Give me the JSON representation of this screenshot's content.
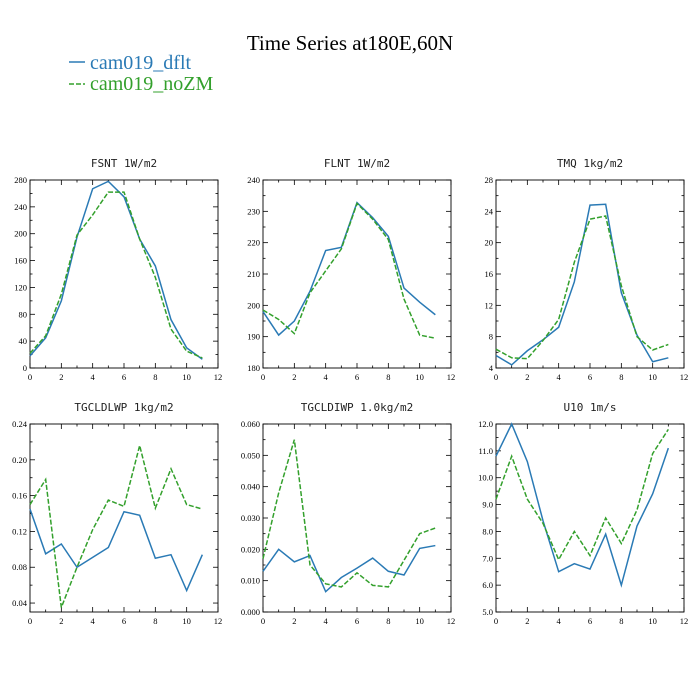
{
  "figure": {
    "title": "Time Series at180E,60N",
    "legend": [
      {
        "name": "cam019_dflt",
        "color": "#2A7AB5",
        "dash": "solid"
      },
      {
        "name": "cam019_noZM",
        "color": "#33A02C",
        "dash": "dashed"
      }
    ]
  },
  "chart_data": [
    {
      "type": "line",
      "title": "FSNT   1W/m2",
      "x": [
        0,
        1,
        2,
        3,
        4,
        5,
        6,
        7,
        8,
        9,
        10,
        11
      ],
      "xlim": [
        0,
        12
      ],
      "xticks": [
        0,
        2,
        4,
        6,
        8,
        10,
        12
      ],
      "ylim": [
        0,
        280
      ],
      "yticks": [
        0,
        40,
        80,
        120,
        160,
        200,
        240,
        280
      ],
      "ytick_labels": [
        "0",
        "40",
        "80",
        "120",
        "160",
        "200",
        "240",
        "280"
      ],
      "series": [
        {
          "name": "cam019_dflt",
          "values": [
            18,
            45,
            100,
            195,
            267,
            278,
            255,
            192,
            152,
            72,
            30,
            13
          ]
        },
        {
          "name": "cam019_noZM",
          "values": [
            22,
            48,
            110,
            198,
            228,
            262,
            262,
            192,
            135,
            58,
            25,
            15
          ]
        }
      ]
    },
    {
      "type": "line",
      "title": "FLNT   1W/m2",
      "x": [
        0,
        1,
        2,
        3,
        4,
        5,
        6,
        7,
        8,
        9,
        10,
        11
      ],
      "xlim": [
        0,
        12
      ],
      "xticks": [
        0,
        2,
        4,
        6,
        8,
        10,
        12
      ],
      "ylim": [
        180,
        240
      ],
      "yticks": [
        180,
        190,
        200,
        210,
        220,
        230,
        240
      ],
      "ytick_labels": [
        "180",
        "190",
        "200",
        "210",
        "220",
        "230",
        "240"
      ],
      "series": [
        {
          "name": "cam019_dflt",
          "values": [
            198,
            190.5,
            195,
            204.5,
            217.5,
            218.5,
            232.8,
            228,
            222,
            205.5,
            201,
            197
          ]
        },
        {
          "name": "cam019_noZM",
          "values": [
            198.5,
            195.5,
            191,
            204,
            211,
            218,
            232.5,
            227.5,
            221,
            202,
            190.5,
            189.5
          ]
        }
      ]
    },
    {
      "type": "line",
      "title": "TMQ   1kg/m2",
      "x": [
        0,
        1,
        2,
        3,
        4,
        5,
        6,
        7,
        8,
        9,
        10,
        11
      ],
      "xlim": [
        0,
        12
      ],
      "xticks": [
        0,
        2,
        4,
        6,
        8,
        10,
        12
      ],
      "ylim": [
        4,
        28
      ],
      "yticks": [
        4,
        8,
        12,
        16,
        20,
        24,
        28
      ],
      "ytick_labels": [
        "4",
        "8",
        "12",
        "16",
        "20",
        "24",
        "28"
      ],
      "series": [
        {
          "name": "cam019_dflt",
          "values": [
            5.6,
            4.4,
            6.2,
            7.6,
            9.2,
            15.0,
            24.8,
            24.9,
            13.6,
            8.2,
            4.8,
            5.3
          ]
        },
        {
          "name": "cam019_noZM",
          "values": [
            6.4,
            5.3,
            5.2,
            7.5,
            10.2,
            17.5,
            23.0,
            23.4,
            14.5,
            8.0,
            6.3,
            7.0
          ]
        }
      ]
    },
    {
      "type": "line",
      "title": "TGCLDLWP   1kg/m2",
      "x": [
        0,
        1,
        2,
        3,
        4,
        5,
        6,
        7,
        8,
        9,
        10,
        11
      ],
      "xlim": [
        0,
        12
      ],
      "xticks": [
        0,
        2,
        4,
        6,
        8,
        10,
        12
      ],
      "ylim": [
        0.03,
        0.24
      ],
      "yticks": [
        0.04,
        0.08,
        0.12,
        0.16,
        0.2,
        0.24
      ],
      "ytick_labels": [
        "0.04",
        "0.08",
        "0.12",
        "0.16",
        "0.20",
        "0.24"
      ],
      "series": [
        {
          "name": "cam019_dflt",
          "values": [
            0.145,
            0.095,
            0.106,
            0.08,
            0.091,
            0.102,
            0.142,
            0.138,
            0.09,
            0.094,
            0.054,
            0.094
          ]
        },
        {
          "name": "cam019_noZM",
          "values": [
            0.15,
            0.178,
            0.035,
            0.08,
            0.122,
            0.155,
            0.148,
            0.216,
            0.146,
            0.19,
            0.15,
            0.145
          ]
        }
      ]
    },
    {
      "type": "line",
      "title": "TGCLDIWP   1.0kg/m2",
      "x": [
        0,
        1,
        2,
        3,
        4,
        5,
        6,
        7,
        8,
        9,
        10,
        11
      ],
      "xlim": [
        0,
        12
      ],
      "xticks": [
        0,
        2,
        4,
        6,
        8,
        10,
        12
      ],
      "ylim": [
        0.0,
        0.06
      ],
      "yticks": [
        0.0,
        0.01,
        0.02,
        0.03,
        0.04,
        0.05,
        0.06
      ],
      "ytick_labels": [
        "0.000",
        "0.010",
        "0.020",
        "0.030",
        "0.040",
        "0.050",
        "0.060"
      ],
      "series": [
        {
          "name": "cam019_dflt",
          "values": [
            0.013,
            0.02,
            0.016,
            0.018,
            0.0065,
            0.011,
            0.014,
            0.0172,
            0.013,
            0.0118,
            0.0203,
            0.0212
          ]
        },
        {
          "name": "cam019_noZM",
          "values": [
            0.017,
            0.038,
            0.055,
            0.015,
            0.009,
            0.008,
            0.0125,
            0.0085,
            0.008,
            0.0165,
            0.025,
            0.0268
          ]
        }
      ]
    },
    {
      "type": "line",
      "title": "U10   1m/s",
      "x": [
        0,
        1,
        2,
        3,
        4,
        5,
        6,
        7,
        8,
        9,
        10,
        11
      ],
      "xlim": [
        0,
        12
      ],
      "xticks": [
        0,
        2,
        4,
        6,
        8,
        10,
        12
      ],
      "ylim": [
        5.0,
        12.0
      ],
      "yticks": [
        5,
        6,
        7,
        8,
        9,
        10,
        11,
        12
      ],
      "ytick_labels": [
        "5.0",
        "6.0",
        "7.0",
        "8.0",
        "9.0",
        "10.0",
        "11.0",
        "12.0"
      ],
      "series": [
        {
          "name": "cam019_dflt",
          "values": [
            10.8,
            12.0,
            10.6,
            8.4,
            6.5,
            6.8,
            6.6,
            7.9,
            6.0,
            8.2,
            9.4,
            11.1
          ]
        },
        {
          "name": "cam019_noZM",
          "values": [
            9.2,
            10.8,
            9.2,
            8.3,
            6.95,
            8.0,
            7.1,
            8.5,
            7.55,
            8.8,
            10.9,
            11.8
          ]
        }
      ]
    }
  ]
}
